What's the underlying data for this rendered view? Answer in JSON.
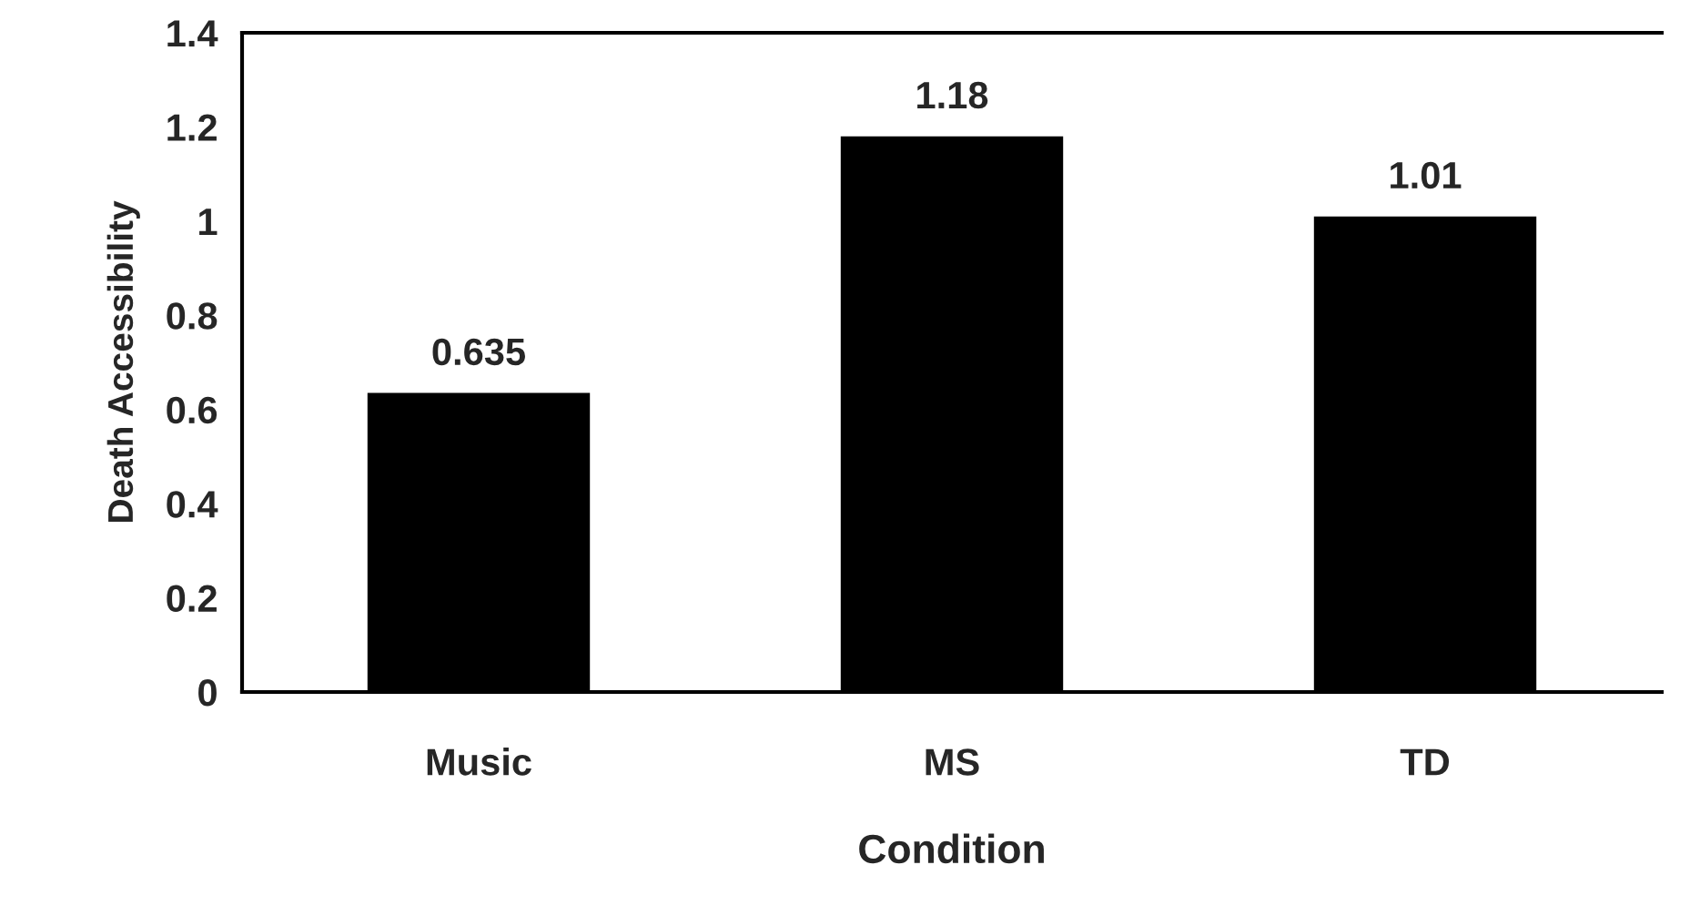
{
  "chart_data": {
    "type": "bar",
    "xlabel": "Condition",
    "ylabel": "Death Accessibility",
    "categories": [
      "Music",
      "MS",
      "TD"
    ],
    "values": [
      0.635,
      1.18,
      1.01
    ],
    "color": "#000000",
    "ylim": [
      0,
      1.4
    ],
    "yticks": [
      0,
      {
        "value": 0.2,
        "label": "0.2"
      },
      {
        "value": 0.4,
        "label": "0.4"
      },
      {
        "value": 0.6,
        "label": "0.6"
      },
      {
        "value": 0.8,
        "label": "0.8"
      },
      1,
      {
        "value": 1.2,
        "label": "1.2"
      },
      {
        "value": 1.4,
        "label": "1.4"
      }
    ],
    "data_labels": true,
    "grid": false,
    "legend": false
  }
}
